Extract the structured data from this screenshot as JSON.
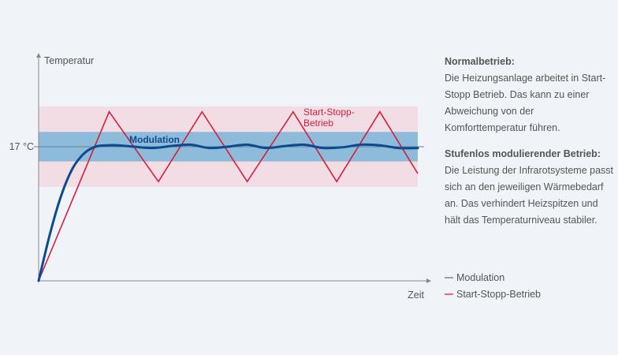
{
  "chart_data": {
    "type": "line",
    "ylabel": "Temperatur",
    "xlabel": "Zeit",
    "y_tick_label": "17 °C",
    "bands": {
      "start_stopp": {
        "low": 14.0,
        "high": 20.0,
        "color": "#f2dde4"
      },
      "modulation": {
        "low": 15.9,
        "high": 18.1,
        "color": "#8fbbda"
      }
    },
    "series": [
      {
        "name": "Start-Stopp-Betrieb",
        "color": "#d21f3c",
        "label": "Start-Stopp-\nBetrieb",
        "x": [
          0,
          18.6,
          31.6,
          43.1,
          55.0,
          67.1,
          78.6,
          90.0,
          100
        ],
        "y": [
          7.0,
          19.6,
          14.4,
          19.6,
          14.4,
          19.6,
          14.4,
          19.6,
          15.0
        ]
      },
      {
        "name": "Modulation",
        "color": "#0d4a8f",
        "label": "Modulation",
        "x": [
          0,
          3,
          6,
          9,
          12,
          15,
          18,
          21,
          25,
          30,
          35,
          40,
          45,
          50,
          55,
          60,
          65,
          70,
          75,
          80,
          85,
          90,
          95,
          100
        ],
        "y": [
          7.0,
          10.5,
          13.4,
          15.4,
          16.5,
          17.0,
          17.1,
          17.1,
          17.0,
          16.9,
          17.05,
          17.15,
          16.9,
          17.0,
          17.15,
          16.9,
          17.05,
          17.15,
          16.9,
          16.95,
          17.15,
          17.1,
          16.9,
          16.9
        ]
      }
    ],
    "ylim": [
      7.0,
      23.7
    ],
    "xlim": [
      0,
      100
    ]
  },
  "side": {
    "normal_heading": "Normalbetrieb:",
    "normal_text": "Die Heizungsanlage arbeitet in Start-Stopp Betrieb. Das kann zu einer Abweichung von der Komforttemperatur führen.",
    "stufen_heading": "Stufenlos modulierender Betrieb:",
    "stufen_text": "Die Leistung der Infrarotsysteme passt sich an den jeweiligen Wärmebedarf an. Das verhindert Heizspitzen und hält das Temperaturniveau stabiler."
  },
  "legend": {
    "items": [
      {
        "label": "Modulation",
        "color": "#7ca7d2"
      },
      {
        "label": "Start-Stopp-Betrieb",
        "color": "#e0697d"
      }
    ]
  }
}
